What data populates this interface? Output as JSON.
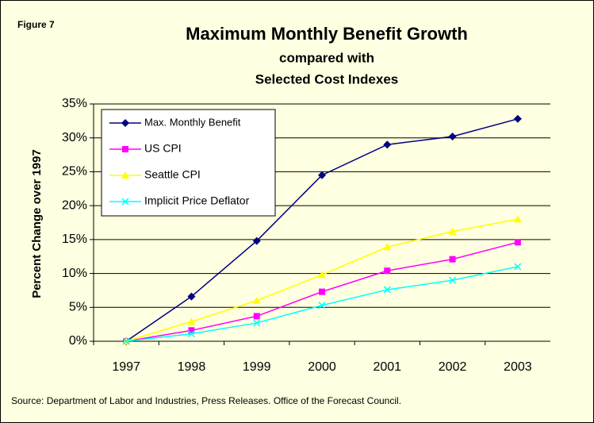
{
  "chart_data": {
    "type": "line",
    "figure_label": "Figure 7",
    "title": "Maximum Monthly Benefit Growth",
    "subtitle": [
      "compared with",
      "Selected Cost Indexes"
    ],
    "y_axis_label": "Percent Change over 1997",
    "source": "Source: Department of Labor and Industries, Press Releases. Office of the Forecast Council.",
    "categories": [
      "1997",
      "1998",
      "1999",
      "2000",
      "2001",
      "2002",
      "2003"
    ],
    "series": [
      {
        "name": "Max. Monthly Benefit",
        "color": "#000080",
        "marker": "diamond",
        "values": [
          0,
          6.6,
          14.8,
          24.5,
          29.0,
          30.2,
          32.8
        ]
      },
      {
        "name": "US CPI",
        "color": "#ff00ff",
        "marker": "square",
        "values": [
          0,
          1.6,
          3.7,
          7.3,
          10.4,
          12.1,
          14.6
        ]
      },
      {
        "name": "Seattle CPI",
        "color": "#ffff00",
        "marker": "triangle",
        "values": [
          0,
          2.9,
          6.0,
          9.8,
          13.9,
          16.2,
          18.0
        ]
      },
      {
        "name": "Implicit Price Deflator",
        "color": "#00ffff",
        "marker": "x",
        "values": [
          0,
          1.1,
          2.7,
          5.3,
          7.6,
          9.0,
          11.0
        ]
      }
    ],
    "ylim": [
      0,
      35
    ],
    "yticks": [
      {
        "value": 0,
        "label": "0%"
      },
      {
        "value": 5,
        "label": "5%"
      },
      {
        "value": 10,
        "label": "10%"
      },
      {
        "value": 15,
        "label": "15%"
      },
      {
        "value": 20,
        "label": "20%"
      },
      {
        "value": 25,
        "label": "25%"
      },
      {
        "value": 30,
        "label": "30%"
      },
      {
        "value": 35,
        "label": "35%"
      }
    ],
    "grid": true,
    "legend": "top-left"
  }
}
